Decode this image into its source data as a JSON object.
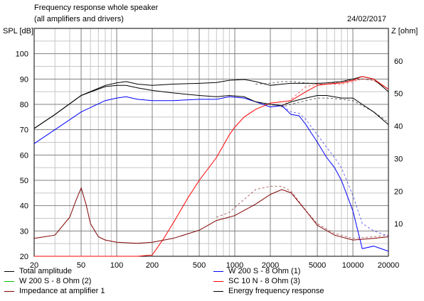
{
  "header": {
    "title": "Frequency response whole speaker",
    "subtitle": "(all amplifiers and drivers)",
    "date": "24/02/2017"
  },
  "chart_data": {
    "type": "line",
    "xscale": "log",
    "xlim": [
      20,
      20000
    ],
    "ylim": [
      20,
      110
    ],
    "y2lim": [
      0,
      70
    ],
    "ylabel": "SPL [dB]",
    "y2label": "Z [ohm]",
    "xticks": [
      20,
      50,
      100,
      200,
      500,
      1000,
      2000,
      5000,
      10000,
      20000
    ],
    "xtick_labels": [
      "20",
      "50",
      "100",
      "200",
      "500",
      "1000",
      "2000",
      "5000",
      "10000",
      "20000"
    ],
    "yticks": [
      20,
      30,
      40,
      50,
      60,
      70,
      80,
      90,
      100
    ],
    "yticks_right": [
      10,
      20,
      30,
      40,
      50,
      60
    ],
    "grid": true,
    "legend_position": "bottom",
    "series": [
      {
        "name": "Total amplitude",
        "color": "#000000",
        "axis": "left",
        "x": [
          20,
          30,
          50,
          80,
          100,
          120,
          150,
          200,
          300,
          500,
          700,
          900,
          1200,
          1500,
          2000,
          2500,
          3000,
          4000,
          5000,
          6000,
          8000,
          10000,
          12000,
          15000,
          20000
        ],
        "y": [
          70.5,
          76,
          83.5,
          87.5,
          88.5,
          89,
          88,
          87.5,
          88,
          88.3,
          88.6,
          89.5,
          89.8,
          89,
          87.5,
          88,
          88.3,
          88.3,
          88.3,
          88.5,
          89,
          90,
          91,
          90,
          85
        ]
      },
      {
        "name": "W 200 S - 8 Ohm (1)",
        "color": "#0000ff",
        "axis": "left",
        "x": [
          20,
          30,
          50,
          80,
          100,
          120,
          150,
          200,
          300,
          500,
          700,
          900,
          1200,
          1500,
          2000,
          2500,
          3000,
          3500,
          4000,
          5000,
          6000,
          7000,
          8000,
          10000,
          12000,
          15000,
          20000
        ],
        "y": [
          64.5,
          70,
          77,
          81.5,
          82.5,
          83,
          82,
          81.5,
          81.5,
          82,
          82,
          83,
          82.5,
          81,
          79,
          79.5,
          76,
          75.5,
          72,
          65,
          59,
          55,
          50,
          38,
          23,
          24,
          22
        ]
      },
      {
        "name": "W 200 S - 8 Ohm (2)",
        "color": "#00c000",
        "axis": "left",
        "x": [],
        "y": []
      },
      {
        "name": "SC 10 N - 8 Ohm (3)",
        "color": "#ff0000",
        "axis": "left",
        "x": [
          20,
          100,
          150,
          200,
          250,
          300,
          400,
          500,
          700,
          900,
          1000,
          1200,
          1500,
          2000,
          2500,
          3000,
          4000,
          5000,
          6000,
          8000,
          10000,
          12000,
          15000,
          20000
        ],
        "y": [
          20,
          20,
          20,
          20.5,
          27,
          33,
          43,
          50,
          59,
          68,
          71,
          75,
          78,
          80.5,
          81,
          81.5,
          85,
          87.5,
          88,
          88.5,
          89.5,
          91,
          90,
          86
        ]
      },
      {
        "name": "Impedance at amplifier 1",
        "color": "#800000",
        "axis": "right",
        "x": [
          20,
          30,
          40,
          45,
          50,
          55,
          60,
          70,
          80,
          100,
          150,
          200,
          300,
          500,
          700,
          1000,
          1500,
          2000,
          2500,
          3000,
          4000,
          5000,
          7000,
          10000,
          15000,
          20000
        ],
        "y": [
          5.5,
          6.5,
          12,
          17,
          21,
          16,
          10,
          6,
          5,
          4.3,
          4,
          4.3,
          5.5,
          8,
          11,
          12.5,
          16,
          19,
          20.5,
          19.5,
          14,
          9.5,
          6.5,
          5,
          5.5,
          6
        ]
      },
      {
        "name": "Energy frequency response",
        "color": "#000000",
        "axis": "left",
        "x": [
          20,
          30,
          50,
          80,
          100,
          120,
          150,
          200,
          300,
          500,
          700,
          900,
          1200,
          1500,
          2000,
          2500,
          3000,
          4000,
          5000,
          6000,
          8000,
          10000,
          12000,
          15000,
          20000
        ],
        "y": [
          70.5,
          76,
          83.5,
          87,
          87.5,
          87.5,
          86.5,
          85.5,
          84.5,
          83.5,
          83,
          83.5,
          83,
          81,
          80,
          79.5,
          81,
          82.5,
          83.5,
          83.5,
          82.5,
          82.5,
          80,
          77,
          72
        ]
      }
    ]
  },
  "dashed_overlays": [
    {
      "color": "#000000",
      "axis": "left",
      "x": [
        1500,
        2000,
        2500,
        3000,
        4000,
        5000,
        6000,
        8000,
        10000,
        12000,
        15000,
        20000
      ],
      "y": [
        88,
        88.3,
        89,
        89,
        88.5,
        88,
        88,
        89,
        89.5,
        90,
        89.5,
        86
      ]
    },
    {
      "color": "#000000",
      "axis": "left",
      "x": [
        1500,
        2000,
        2500,
        3000,
        4000,
        5000,
        6000,
        8000,
        10000,
        12000,
        15000,
        20000
      ],
      "y": [
        81,
        80,
        79,
        80,
        81.5,
        82.5,
        82.5,
        82,
        81.5,
        79.5,
        77,
        73
      ]
    },
    {
      "color": "#0000ff",
      "axis": "left",
      "x": [
        2000,
        2500,
        3000,
        3500,
        4000,
        5000,
        6000,
        7000,
        8000,
        10000,
        12000,
        15000,
        20000
      ],
      "y": [
        79,
        79.5,
        77,
        76.5,
        74,
        68,
        63,
        59,
        55,
        44,
        33,
        30,
        28
      ]
    },
    {
      "color": "#ff0000",
      "axis": "left",
      "x": [
        2500,
        3000,
        4000,
        5000,
        6000,
        8000,
        10000,
        12000,
        15000,
        20000
      ],
      "y": [
        79,
        82,
        87,
        88,
        88,
        88,
        89,
        90,
        89.5,
        86
      ]
    },
    {
      "color": "#800000",
      "axis": "right",
      "x": [
        700,
        900,
        1000,
        1200,
        1500,
        2000,
        2500,
        3000,
        4000,
        5000,
        7000,
        10000,
        15000,
        20000
      ],
      "y": [
        12,
        13.5,
        15,
        17.5,
        20.5,
        21.5,
        21.5,
        20,
        14,
        10,
        7,
        5.5,
        6,
        6.5
      ]
    }
  ]
}
